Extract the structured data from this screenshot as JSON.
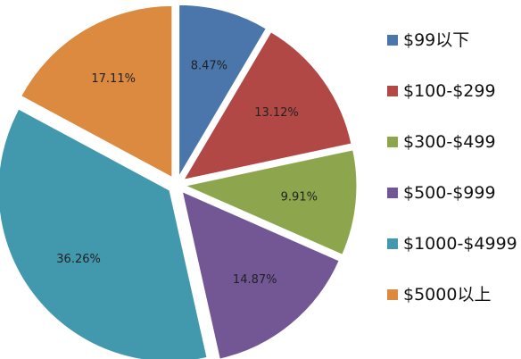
{
  "chart_data": {
    "type": "pie",
    "exploded": true,
    "legend_position": "right",
    "categories": [
      "$99以下",
      "$100-$299",
      "$300-$499",
      "$500-$999",
      "$1000-$4999",
      "$5000以上"
    ],
    "values": [
      8.47,
      13.12,
      9.91,
      14.87,
      36.26,
      17.11
    ],
    "labels": [
      "8.47%",
      "13.12%",
      "9.91%",
      "14.87%",
      "36.26%",
      "17.11%"
    ],
    "colors": [
      "#4a76ab",
      "#b24846",
      "#8da64d",
      "#725794",
      "#4299ae",
      "#db8a3f"
    ]
  }
}
